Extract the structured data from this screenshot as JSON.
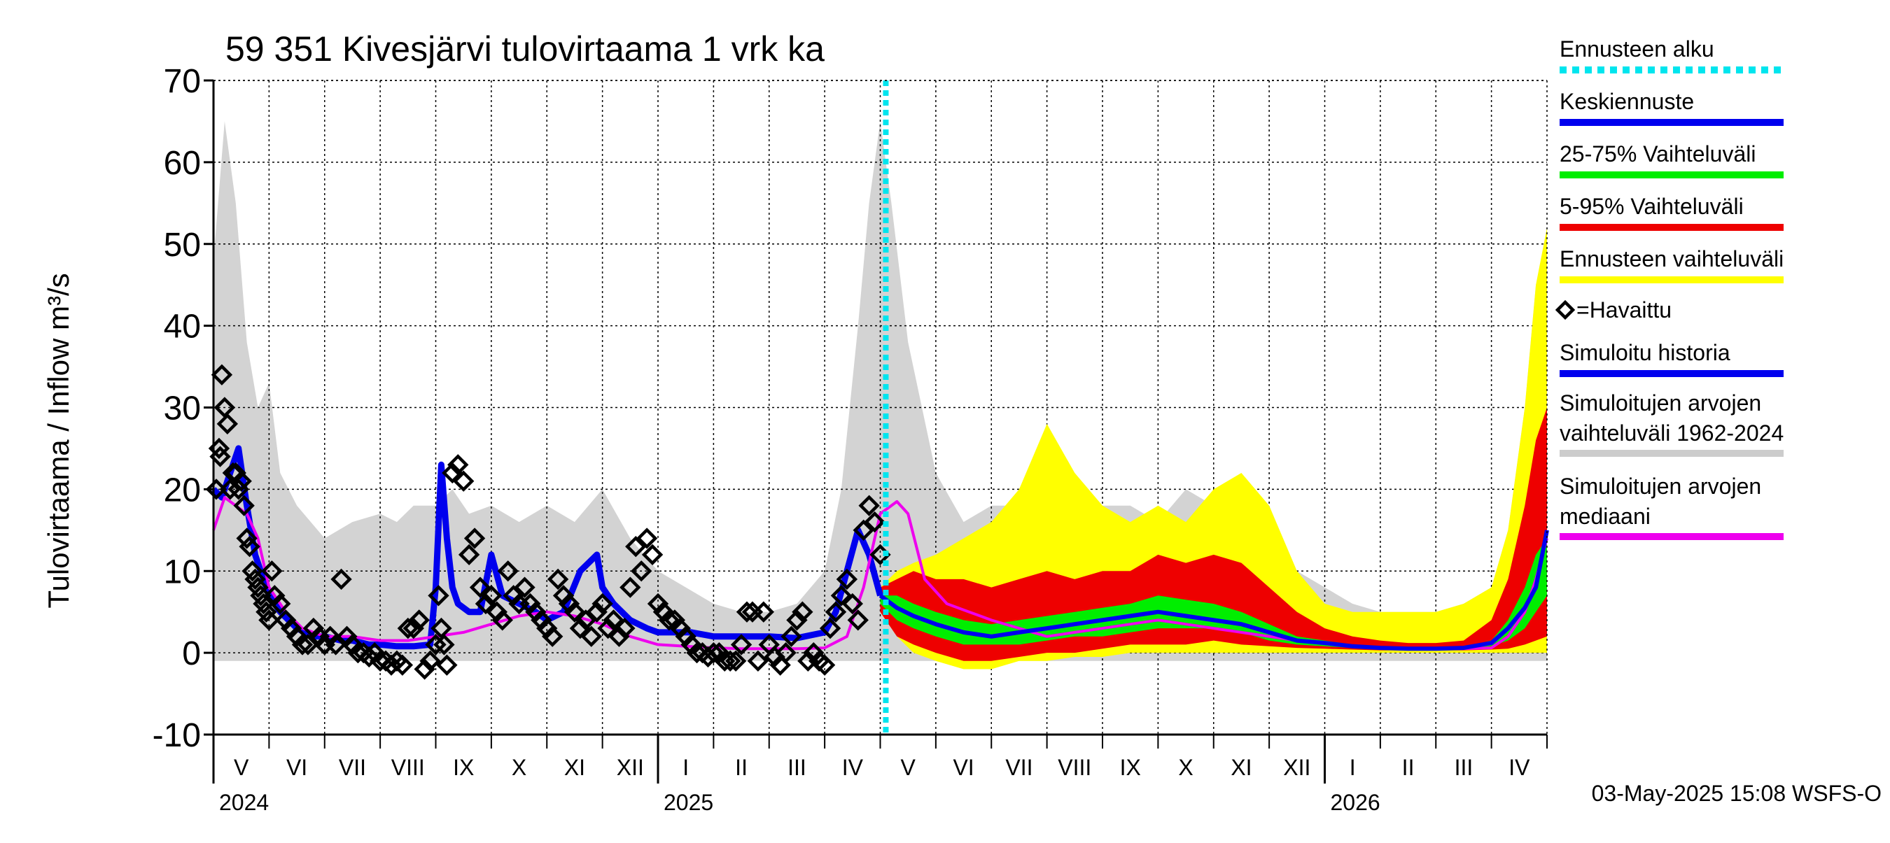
{
  "chart_data": {
    "type": "area",
    "title": "59 351 Kivesjärvi tulovirtaama 1 vrk ka",
    "ylabel": "Tulovirtaama / Inflow    m³/s",
    "ylim": [
      -10,
      70
    ],
    "yticks": [
      -10,
      0,
      10,
      20,
      30,
      40,
      50,
      60,
      70
    ],
    "xlim_months": [
      0,
      24
    ],
    "forecast_start_month": 12.1,
    "month_labels": [
      {
        "label": "V",
        "start": 0
      },
      {
        "label": "VI",
        "start": 1
      },
      {
        "label": "VII",
        "start": 2
      },
      {
        "label": "VIII",
        "start": 3
      },
      {
        "label": "IX",
        "start": 4
      },
      {
        "label": "X",
        "start": 5
      },
      {
        "label": "XI",
        "start": 6
      },
      {
        "label": "XII",
        "start": 7
      },
      {
        "label": "I",
        "start": 8
      },
      {
        "label": "II",
        "start": 9
      },
      {
        "label": "III",
        "start": 10
      },
      {
        "label": "IV",
        "start": 11
      },
      {
        "label": "V",
        "start": 12
      },
      {
        "label": "VI",
        "start": 13
      },
      {
        "label": "VII",
        "start": 14
      },
      {
        "label": "VIII",
        "start": 15
      },
      {
        "label": "IX",
        "start": 16
      },
      {
        "label": "X",
        "start": 17
      },
      {
        "label": "XI",
        "start": 18
      },
      {
        "label": "XII",
        "start": 19
      },
      {
        "label": "I",
        "start": 20
      },
      {
        "label": "II",
        "start": 21
      },
      {
        "label": "III",
        "start": 22
      },
      {
        "label": "IV",
        "start": 23
      }
    ],
    "year_labels": [
      {
        "label": "2024",
        "at": 0
      },
      {
        "label": "2025",
        "at": 8
      },
      {
        "label": "2026",
        "at": 20
      }
    ],
    "year_boundaries": [
      8,
      20
    ],
    "legend": [
      {
        "label": "Ennusteen alku",
        "color": "#00e5ee",
        "style": "dotted"
      },
      {
        "label": "Keskiennuste",
        "color": "#0000ee",
        "style": "line"
      },
      {
        "label": "25-75% Vaihteluväli",
        "color": "#00ee00",
        "style": "line"
      },
      {
        "label": "5-95% Vaihteluväli",
        "color": "#ee0000",
        "style": "line"
      },
      {
        "label": "Ennusteen vaihteluväli",
        "color": "#ffff00",
        "style": "line"
      },
      {
        "label": "=Havaittu",
        "color": "#000000",
        "style": "diamond"
      },
      {
        "label": "Simuloitu historia",
        "color": "#0000ee",
        "style": "line"
      },
      {
        "label": "Simuloitujen arvojen",
        "label2": "vaihteluväli 1962-2024",
        "color": "#cccccc",
        "style": "line"
      },
      {
        "label": "Simuloitujen arvojen",
        "label2": "mediaani",
        "color": "#ee00ee",
        "style": "line"
      }
    ],
    "history_range": {
      "x": [
        0,
        0.2,
        0.4,
        0.6,
        0.8,
        1.0,
        1.2,
        1.5,
        2.0,
        2.5,
        3.0,
        3.3,
        3.6,
        4.0,
        4.3,
        4.6,
        5.0,
        5.5,
        6.0,
        6.5,
        7.0,
        7.5,
        8.0,
        8.5,
        9.0,
        9.5,
        10.0,
        10.5,
        11.0,
        11.3,
        11.6,
        11.8,
        12.0,
        12.2,
        12.5,
        13.0,
        13.5,
        14.0,
        14.5,
        15.0,
        15.5,
        16.0,
        16.5,
        17.0,
        17.5,
        18.0,
        18.5,
        19.0,
        19.5,
        20.0,
        20.5,
        21.0,
        21.5,
        22.0,
        22.5,
        23.0,
        23.3,
        23.6,
        23.8,
        24.0
      ],
      "high": [
        48,
        65,
        55,
        38,
        30,
        33,
        22,
        18,
        14,
        16,
        17,
        16,
        18,
        18,
        20,
        17,
        18,
        16,
        18,
        16,
        20,
        14,
        10,
        8,
        6,
        5,
        5,
        6,
        10,
        20,
        40,
        55,
        65,
        55,
        38,
        22,
        16,
        18,
        18,
        18,
        20,
        18,
        18,
        16,
        20,
        18,
        16,
        16,
        10,
        8,
        6,
        5,
        5,
        5,
        6,
        8,
        15,
        30,
        45,
        50
      ],
      "low": [
        -1,
        -1,
        -1,
        -1,
        -1,
        -1,
        -1,
        -1,
        -1,
        -1,
        -1,
        -1,
        -1,
        -1,
        -1,
        -1,
        -1,
        -1,
        -1,
        -1,
        -1,
        -1,
        -1,
        -1,
        -1,
        -1,
        -1,
        -1,
        -1,
        -1,
        -1,
        -1,
        -1,
        -1,
        -1,
        -1,
        -1,
        -1,
        -1,
        -1,
        -1,
        -1,
        -1,
        -1,
        -1,
        -1,
        -1,
        -1,
        -1,
        -1,
        -1,
        -1,
        -1,
        -1,
        -1,
        -1,
        -1,
        -1,
        -1,
        -1
      ]
    },
    "median": {
      "x": [
        0,
        0.2,
        0.4,
        0.6,
        0.8,
        1.0,
        1.3,
        1.6,
        2.0,
        2.5,
        3.0,
        3.5,
        4.0,
        4.5,
        5.0,
        5.5,
        6.0,
        6.5,
        7.0,
        7.5,
        8.0,
        8.5,
        9.0,
        9.5,
        10.0,
        10.5,
        11.0,
        11.4,
        11.7,
        12.0,
        12.3,
        12.5,
        12.8,
        13.2,
        13.6,
        14.0,
        14.5,
        15.0,
        15.5,
        16.0,
        16.5,
        17.0,
        17.5,
        18.0,
        18.5,
        19.0,
        19.5,
        20.0,
        20.5,
        21.0,
        21.5,
        22.0,
        22.5,
        23.0,
        23.3,
        23.6,
        23.8,
        24.0
      ],
      "y": [
        15,
        19,
        18,
        17,
        14,
        8,
        5,
        3,
        2,
        2,
        1.5,
        1.5,
        2,
        2.5,
        3.5,
        4.5,
        5,
        4.5,
        3.5,
        2,
        1,
        0.8,
        0.6,
        0.5,
        0.5,
        0.5,
        0.6,
        2,
        8,
        17,
        18.5,
        17,
        9,
        6,
        5,
        4,
        3,
        2,
        2.5,
        3,
        3.5,
        4,
        3.5,
        3,
        2.5,
        2,
        1.5,
        1.2,
        0.8,
        0.6,
        0.5,
        0.5,
        0.5,
        0.6,
        2,
        5,
        9,
        14
      ]
    },
    "sim_history": {
      "x": [
        0,
        0.15,
        0.3,
        0.45,
        0.6,
        0.75,
        0.9,
        1.0,
        1.2,
        1.5,
        1.8,
        2.0,
        2.3,
        2.5,
        2.8,
        3.0,
        3.3,
        3.6,
        3.9,
        4.0,
        4.1,
        4.2,
        4.3,
        4.4,
        4.6,
        4.8,
        5.0,
        5.2,
        5.5,
        5.8,
        6.0,
        6.3,
        6.6,
        6.9,
        7.0,
        7.2,
        7.5,
        7.8,
        8.0,
        8.3,
        8.6,
        9.0,
        9.5,
        10.0,
        10.5,
        11.0,
        11.2,
        11.4,
        11.6,
        11.8,
        12.0
      ],
      "y": [
        20,
        19,
        22,
        25,
        18,
        12,
        9,
        7,
        5,
        3,
        2,
        2,
        1.5,
        1.5,
        1,
        1,
        0.8,
        0.8,
        1,
        8,
        23,
        14,
        8,
        6,
        5,
        5,
        12,
        7,
        6,
        5,
        4,
        5,
        10,
        12,
        8,
        6,
        4,
        3,
        2.5,
        2.5,
        2.5,
        2,
        2,
        2,
        1.8,
        2.5,
        5,
        10,
        15,
        12,
        7
      ]
    },
    "forecast": {
      "x": [
        12.0,
        12.3,
        12.6,
        13.0,
        13.5,
        14.0,
        14.5,
        15.0,
        15.5,
        16.0,
        16.5,
        17.0,
        17.5,
        18.0,
        18.5,
        19.0,
        19.5,
        20.0,
        20.5,
        21.0,
        21.5,
        22.0,
        22.5,
        23.0,
        23.3,
        23.6,
        23.8,
        24.0
      ],
      "yellow_high": [
        8,
        10,
        11,
        12,
        14,
        16,
        20,
        28,
        22,
        18,
        16,
        18,
        16,
        20,
        22,
        18,
        10,
        6,
        5,
        5,
        5,
        5,
        6,
        8,
        15,
        30,
        45,
        52
      ],
      "yellow_low": [
        5,
        2,
        0,
        -1,
        -2,
        -2,
        -1,
        -1,
        -0.5,
        -0.5,
        0,
        0,
        0,
        0,
        0,
        0,
        0,
        0,
        0,
        0,
        0,
        0,
        0,
        0,
        0,
        0,
        0,
        0
      ],
      "red_high": [
        8,
        9,
        10,
        9,
        9,
        8,
        9,
        10,
        9,
        10,
        10,
        12,
        11,
        12,
        11,
        8,
        5,
        3,
        2,
        1.5,
        1.2,
        1.2,
        1.5,
        4,
        9,
        18,
        26,
        30
      ],
      "red_low": [
        5,
        2,
        1,
        0,
        -1,
        -1,
        -0.5,
        0,
        0,
        0.5,
        1,
        1,
        1,
        1.5,
        1,
        0.8,
        0.6,
        0.5,
        0.4,
        0.3,
        0.3,
        0.3,
        0.3,
        0.4,
        0.5,
        1,
        1.5,
        2
      ],
      "green_high": [
        7,
        7,
        6,
        5,
        4,
        3.5,
        4,
        4.5,
        5,
        5.5,
        6,
        7,
        6.5,
        6,
        5,
        3.5,
        2,
        1.5,
        1,
        0.8,
        0.6,
        0.6,
        0.7,
        1.5,
        4,
        8,
        12,
        14
      ],
      "green_low": [
        6,
        4,
        3,
        2,
        1,
        1,
        1,
        1.5,
        2,
        2,
        2.5,
        3,
        3,
        3,
        2.5,
        1.5,
        1,
        0.8,
        0.6,
        0.5,
        0.4,
        0.4,
        0.5,
        0.8,
        1.5,
        3,
        5,
        7
      ],
      "mean": [
        7,
        5.5,
        4.5,
        3.5,
        2.5,
        2,
        2.5,
        3,
        3.5,
        4,
        4.5,
        5,
        4.5,
        4,
        3.5,
        2.5,
        1.5,
        1.2,
        0.8,
        0.6,
        0.5,
        0.5,
        0.6,
        1.2,
        3,
        5.5,
        8,
        15
      ]
    },
    "observed": {
      "x": [
        0.05,
        0.1,
        0.12,
        0.15,
        0.2,
        0.25,
        0.3,
        0.35,
        0.4,
        0.45,
        0.5,
        0.55,
        0.6,
        0.65,
        0.7,
        0.75,
        0.8,
        0.85,
        0.9,
        0.95,
        1.0,
        1.05,
        1.1,
        1.2,
        1.3,
        1.4,
        1.5,
        1.6,
        1.7,
        1.8,
        1.9,
        2.0,
        2.1,
        2.2,
        2.3,
        2.4,
        2.5,
        2.6,
        2.7,
        2.8,
        2.9,
        3.0,
        3.1,
        3.2,
        3.3,
        3.4,
        3.5,
        3.6,
        3.7,
        3.8,
        3.9,
        4.0,
        4.05,
        4.1,
        4.15,
        4.2,
        4.3,
        4.4,
        4.5,
        4.6,
        4.7,
        4.8,
        4.9,
        5.0,
        5.1,
        5.2,
        5.3,
        5.4,
        5.5,
        5.6,
        5.7,
        5.8,
        5.9,
        6.0,
        6.1,
        6.2,
        6.3,
        6.4,
        6.5,
        6.6,
        6.7,
        6.8,
        6.9,
        7.0,
        7.1,
        7.2,
        7.3,
        7.4,
        7.5,
        7.6,
        7.7,
        7.8,
        7.9,
        8.0,
        8.1,
        8.2,
        8.3,
        8.4,
        8.5,
        8.6,
        8.7,
        8.8,
        8.9,
        9.0,
        9.1,
        9.2,
        9.3,
        9.4,
        9.5,
        9.6,
        9.7,
        9.8,
        9.9,
        10.0,
        10.1,
        10.2,
        10.3,
        10.4,
        10.5,
        10.6,
        10.7,
        10.8,
        10.9,
        11.0,
        11.1,
        11.2,
        11.3,
        11.4,
        11.5,
        11.6,
        11.7,
        11.8,
        11.9,
        12.0
      ],
      "y": [
        20,
        25,
        24,
        34,
        30,
        28,
        20,
        22,
        22,
        20,
        21,
        18,
        14,
        13,
        10,
        9,
        8,
        7,
        6,
        5,
        4,
        10,
        7,
        6,
        4,
        3,
        2,
        1,
        1,
        3,
        2,
        1,
        2,
        1,
        9,
        2,
        1,
        0,
        0,
        -0.5,
        0,
        -1,
        -1,
        -1.5,
        -1,
        -1.5,
        3,
        3,
        4,
        -2,
        -1,
        1,
        7,
        3,
        1,
        -1.5,
        22,
        23,
        21,
        12,
        14,
        8,
        6,
        7,
        5,
        4,
        10,
        7,
        6,
        8,
        6,
        5,
        4,
        3,
        2,
        9,
        7,
        6,
        5,
        3,
        4,
        2,
        5,
        6,
        3,
        4,
        2,
        3,
        8,
        13,
        10,
        14,
        12,
        6,
        5,
        4,
        4,
        3,
        2,
        1,
        0,
        0,
        -0.5,
        0,
        0,
        -1,
        -1,
        -1,
        1,
        5,
        5,
        -1,
        5,
        1,
        -0.5,
        -1.5,
        0,
        2,
        4,
        5,
        -1,
        0,
        -1,
        -1.5,
        3,
        5,
        7,
        9,
        6,
        4,
        15,
        18,
        16,
        12
      ]
    },
    "timestamp": "03-May-2025 15:08 WSFS-O"
  }
}
